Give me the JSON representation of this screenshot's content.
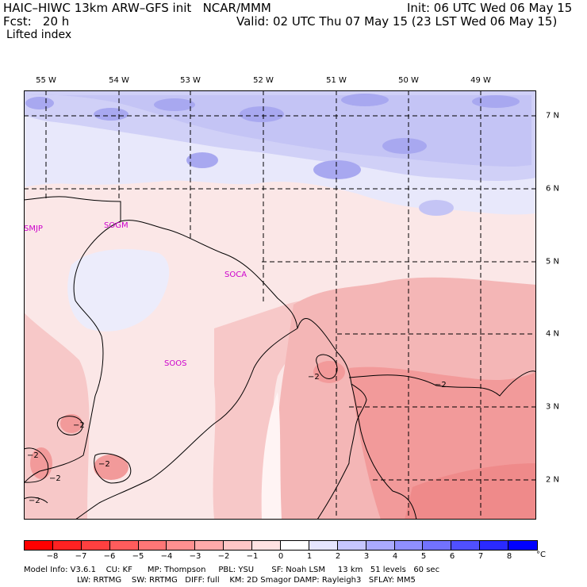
{
  "header": {
    "title_left": "HAIC–HIWC 13km ARW–GFS init   NCAR/MMM",
    "init": "Init: 06 UTC Wed 06 May 15",
    "fcst": "Fcst:   20 h",
    "valid": "Valid: 02 UTC Thu 07 May 15 (23 LST Wed 06 May 15)",
    "field": "Lifted index"
  },
  "map": {
    "lon_labels": [
      "55 W",
      "54 W",
      "53 W",
      "52 W",
      "51 W",
      "50 W",
      "49 W"
    ],
    "lat_labels": [
      "7 N",
      "6 N",
      "5 N",
      "4 N",
      "3 N",
      "2 N"
    ],
    "stations": [
      "SMJP",
      "SOGM",
      "SOCA",
      "SOOS"
    ],
    "contour_labels": [
      "−2",
      "−2",
      "−2",
      "−2",
      "−2",
      "−2",
      "−2"
    ]
  },
  "colorbar": {
    "ticks": [
      "−8",
      "−7",
      "−6",
      "−5",
      "−4",
      "−3",
      "−2",
      "−1",
      "0",
      "1",
      "2",
      "3",
      "4",
      "5",
      "6",
      "7",
      "8"
    ],
    "unit": "°C",
    "colors": [
      "#ff0000",
      "#ff2222",
      "#ff4040",
      "#ff5c5c",
      "#ff7676",
      "#ff9090",
      "#ffaaaa",
      "#ffc6c6",
      "#ffe2e2",
      "#ffffff",
      "#e6e6ff",
      "#c6c6ff",
      "#aaaaff",
      "#8f8fff",
      "#7272ff",
      "#5050ff",
      "#2a2aff",
      "#0000ff"
    ]
  },
  "footer": {
    "line1": "Model Info: V3.6.1    CU: KF      MP: Thompson     PBL: YSU       SF: Noah LSM     13 km   51 levels   60 sec",
    "line2": "LW: RRTMG    SW: RRTMG   DIFF: full    KM: 2D Smagor DAMP: Rayleigh3   SFLAY: MM5"
  }
}
